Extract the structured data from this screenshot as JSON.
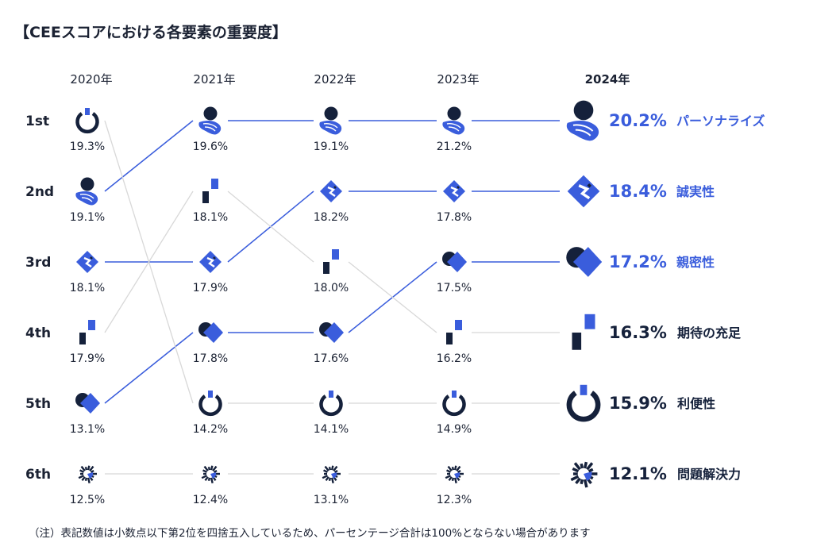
{
  "title": "【CEEスコアにおける各要素の重要度】",
  "footnote": "（注）表記数値は小数点以下第2位を四捨五入しているため、パーセンテージ合計は100%とならない場合があります",
  "colors": {
    "accent": "#3a5ddc",
    "dark": "#15213b",
    "gray_line": "#d8d8d8"
  },
  "chart_data": {
    "type": "bump",
    "years": [
      "2020年",
      "2021年",
      "2022年",
      "2023年",
      "2024年"
    ],
    "ranks": [
      "1st",
      "2nd",
      "3rd",
      "4th",
      "5th",
      "6th"
    ],
    "series": [
      {
        "name": "パーソナライズ",
        "icon": "personalize-icon",
        "highlight": true,
        "ranks": [
          2,
          1,
          1,
          1,
          1
        ],
        "values": [
          "19.1%",
          "19.6%",
          "19.1%",
          "21.2%",
          "20.2%"
        ]
      },
      {
        "name": "誠実性",
        "icon": "integrity-icon",
        "highlight": true,
        "ranks": [
          3,
          3,
          2,
          2,
          2
        ],
        "values": [
          "18.1%",
          "17.9%",
          "18.2%",
          "17.8%",
          "18.4%"
        ]
      },
      {
        "name": "親密性",
        "icon": "empathy-icon",
        "highlight": true,
        "ranks": [
          5,
          4,
          4,
          3,
          3
        ],
        "values": [
          "13.1%",
          "17.8%",
          "17.6%",
          "17.5%",
          "17.2%"
        ]
      },
      {
        "name": "期待の充足",
        "icon": "expectations-icon",
        "highlight": false,
        "ranks": [
          4,
          2,
          3,
          4,
          4
        ],
        "values": [
          "17.9%",
          "18.1%",
          "18.0%",
          "16.2%",
          "16.3%"
        ]
      },
      {
        "name": "利便性",
        "icon": "time-effort-icon",
        "highlight": false,
        "ranks": [
          1,
          5,
          5,
          5,
          5
        ],
        "values": [
          "19.3%",
          "14.2%",
          "14.1%",
          "14.9%",
          "15.9%"
        ]
      },
      {
        "name": "問題解決力",
        "icon": "resolution-icon",
        "highlight": false,
        "ranks": [
          6,
          6,
          6,
          6,
          6
        ],
        "values": [
          "12.5%",
          "12.4%",
          "13.1%",
          "12.3%",
          "12.1%"
        ]
      }
    ]
  }
}
